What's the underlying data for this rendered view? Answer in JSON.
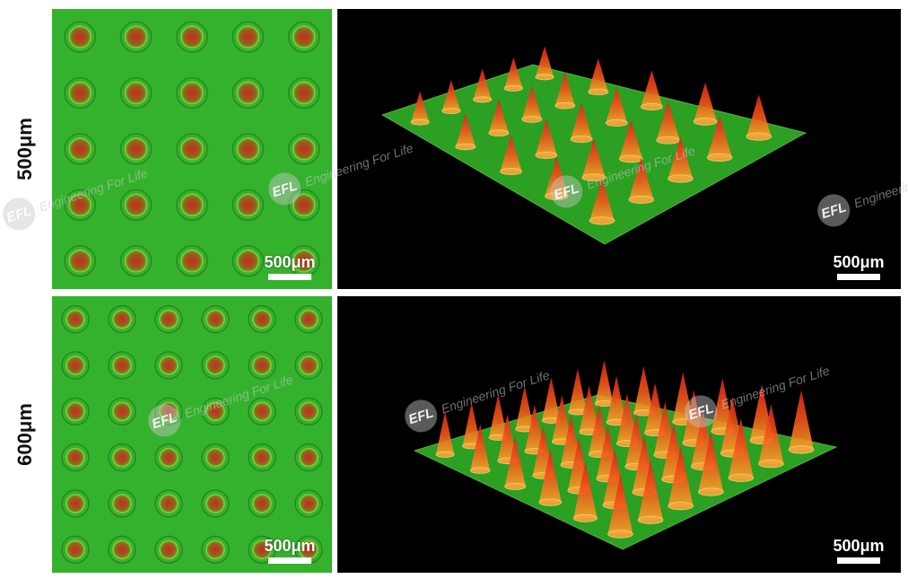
{
  "rows": [
    {
      "label": "500μm"
    },
    {
      "label": "600μm"
    }
  ],
  "scale_bar_label": "500μm",
  "watermark": {
    "logo": "EFL",
    "text": "Engineering For Life"
  },
  "colors": {
    "substrate_green": "#2fb52a",
    "needle_red": "#d8311c",
    "needle_orange": "#f08a1c",
    "background_black": "#000000"
  }
}
